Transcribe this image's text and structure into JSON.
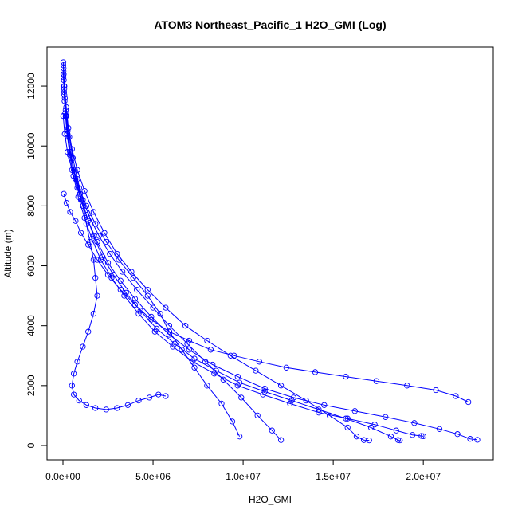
{
  "chart_data": {
    "type": "scatter",
    "title": "ATOM3 Northeast_Pacific_1 H2O_GMI (Log)",
    "xlabel": "H2O_GMI",
    "ylabel": "Altitude (m)",
    "xlim": [
      0,
      23000000
    ],
    "ylim": [
      0,
      12800
    ],
    "xticks": [
      {
        "value": 0,
        "label": "0.0e+00"
      },
      {
        "value": 5000000,
        "label": "5.0e+06"
      },
      {
        "value": 10000000,
        "label": "1.0e+07"
      },
      {
        "value": 15000000,
        "label": "1.5e+07"
      },
      {
        "value": 20000000,
        "label": "2.0e+07"
      }
    ],
    "yticks": [
      {
        "value": 0,
        "label": "0"
      },
      {
        "value": 2000,
        "label": "2000"
      },
      {
        "value": 4000,
        "label": "4000"
      },
      {
        "value": 6000,
        "label": "6000"
      },
      {
        "value": 8000,
        "label": "8000"
      },
      {
        "value": 10000,
        "label": "10000"
      },
      {
        "value": 12000,
        "label": "12000"
      }
    ],
    "grid": false,
    "legend": "none",
    "marker": "open-circle",
    "color": "#0000ff",
    "series": [
      {
        "x": [
          23000,
          40000,
          60000,
          90000,
          150000,
          250000,
          400000,
          600000,
          900000,
          1300000,
          1800000,
          2400000,
          3100000,
          3900000,
          4700000,
          5400000,
          5900000,
          6600000,
          7300000,
          8000000,
          8800000,
          9400000,
          9800000
        ],
        "y": [
          12800,
          12400,
          12000,
          11500,
          11000,
          10400,
          9800,
          9200,
          8600,
          8000,
          7400,
          6800,
          6200,
          5600,
          5000,
          4400,
          3800,
          3200,
          2600,
          2000,
          1400,
          800,
          300
        ]
      },
      {
        "x": [
          23000,
          50000,
          100000,
          200000,
          350000,
          550000,
          800000,
          1100000,
          1500000,
          2000000,
          2600000,
          3300000,
          4100000,
          5000000,
          5900000,
          6900000,
          7900000,
          8900000,
          9900000,
          10800000,
          11600000,
          12100000
        ],
        "y": [
          12700,
          12200,
          11600,
          11000,
          10300,
          9600,
          8900,
          8200,
          7600,
          7000,
          6400,
          5800,
          5200,
          4600,
          4000,
          3400,
          2800,
          2200,
          1600,
          1000,
          500,
          180
        ]
      },
      {
        "x": [
          30000,
          80000,
          180000,
          300000,
          500000,
          800000,
          1200000,
          1700000,
          2300000,
          3000000,
          3800000,
          4700000,
          5700000,
          6800000,
          8000000,
          9300000,
          10700000,
          12100000,
          13500000,
          14800000,
          15800000,
          16300000,
          16700000,
          17000000
        ],
        "y": [
          12600,
          12000,
          11300,
          10600,
          9900,
          9200,
          8500,
          7800,
          7100,
          6400,
          5800,
          5200,
          4600,
          4000,
          3500,
          3000,
          2500,
          2000,
          1500,
          1000,
          600,
          300,
          180,
          170
        ]
      },
      {
        "x": [
          25000,
          70000,
          150000,
          260000,
          420000,
          650000,
          950000,
          1300000,
          1700000,
          2200000,
          2800000,
          3500000,
          4300000,
          5200000,
          6200000,
          7300000,
          8500000,
          9800000,
          11200000,
          12700000,
          14200000,
          15700000,
          17100000,
          18200000,
          18600000,
          18700000
        ],
        "y": [
          12500,
          11900,
          11200,
          10500,
          9800,
          9100,
          8400,
          7700,
          7000,
          6300,
          5700,
          5100,
          4500,
          3900,
          3400,
          2900,
          2500,
          2100,
          1800,
          1500,
          1200,
          900,
          600,
          300,
          180,
          170
        ]
      },
      {
        "x": [
          20000,
          60000,
          130000,
          230000,
          380000,
          580000,
          850000,
          1200000,
          1600000,
          2100000,
          2700000,
          3400000,
          4200000,
          5100000,
          6100000,
          7200000,
          8400000,
          9700000,
          11100000,
          12600000,
          14200000,
          15800000,
          17300000,
          18500000,
          19400000,
          19900000,
          20000000
        ],
        "y": [
          12400,
          11800,
          11100,
          10400,
          9700,
          9000,
          8300,
          7600,
          6900,
          6200,
          5600,
          5000,
          4400,
          3800,
          3300,
          2800,
          2400,
          2000,
          1700,
          1400,
          1100,
          900,
          700,
          500,
          350,
          320,
          310
        ]
      },
      {
        "x": [
          28000,
          75000,
          160000,
          280000,
          450000,
          700000,
          1000000,
          1400000,
          1900000,
          2500000,
          3200000,
          4000000,
          4900000,
          5900000,
          7000000,
          8300000,
          9700000,
          11200000,
          12800000,
          14500000,
          16200000,
          17900000,
          19500000,
          20900000,
          21900000,
          22600000,
          23000000
        ],
        "y": [
          12300,
          11700,
          11000,
          10300,
          9600,
          8900,
          8200,
          7500,
          6800,
          6100,
          5500,
          4900,
          4300,
          3700,
          3200,
          2700,
          2300,
          1900,
          1600,
          1350,
          1150,
          950,
          750,
          550,
          380,
          220,
          190
        ]
      },
      {
        "x": [
          15000,
          100000,
          250000,
          500000,
          800000,
          1100000,
          1300000,
          1500000,
          1700000,
          1800000,
          1900000,
          1700000,
          1400000,
          1100000,
          800000,
          600000,
          500000,
          600000,
          900000,
          1300000,
          1800000,
          2400000,
          3000000,
          3600000,
          4200000,
          4800000,
          5300000,
          5700000
        ],
        "y": [
          11000,
          10400,
          9800,
          9200,
          8600,
          8000,
          7400,
          6800,
          6200,
          5600,
          5000,
          4400,
          3800,
          3300,
          2800,
          2400,
          2000,
          1700,
          1500,
          1350,
          1250,
          1200,
          1250,
          1350,
          1500,
          1600,
          1700,
          1650
        ]
      },
      {
        "x": [
          50000,
          200000,
          400000,
          700000,
          1000000,
          1400000,
          1900000,
          2500000,
          3200000,
          4000000,
          4900000,
          5900000,
          7000000,
          8200000,
          9500000,
          10900000,
          12400000,
          14000000,
          15700000,
          17400000,
          19100000,
          20700000,
          21800000,
          22500000
        ],
        "y": [
          8400,
          8100,
          7800,
          7500,
          7100,
          6700,
          6200,
          5700,
          5200,
          4700,
          4200,
          3800,
          3500,
          3200,
          3000,
          2800,
          2600,
          2450,
          2300,
          2150,
          2000,
          1850,
          1650,
          1450
        ]
      }
    ]
  }
}
